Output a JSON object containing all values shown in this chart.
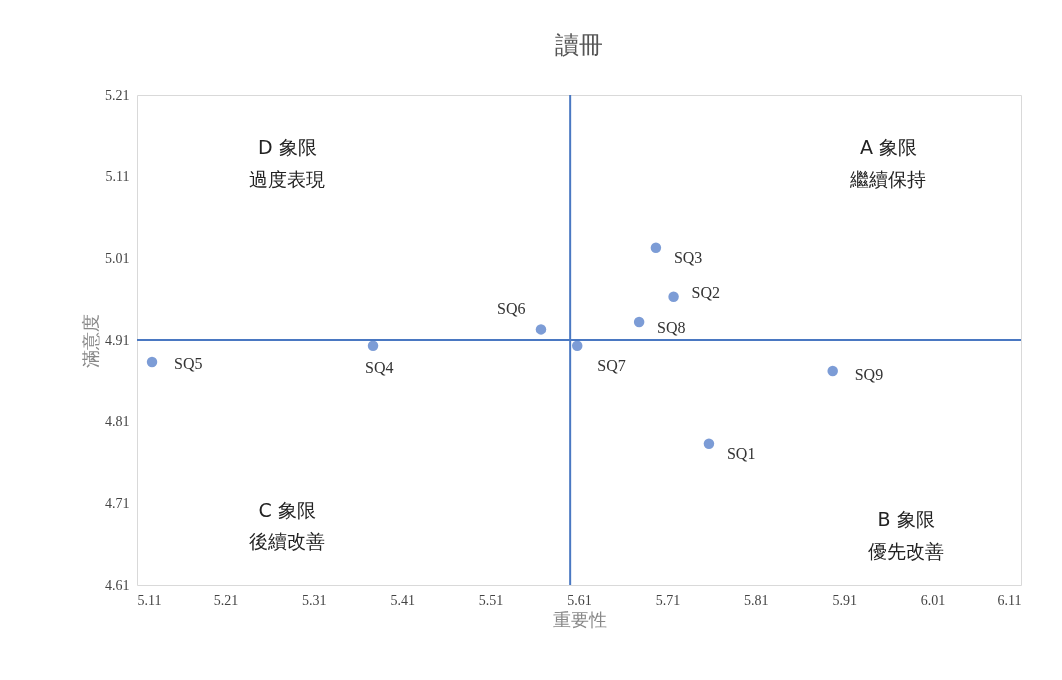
{
  "chart_data": {
    "type": "scatter",
    "title": "讀冊",
    "xlabel": "重要性",
    "ylabel": "滿意度",
    "xlim": [
      5.11,
      6.11
    ],
    "xticks": [
      5.11,
      5.21,
      5.31,
      5.41,
      5.51,
      5.61,
      5.71,
      5.81,
      5.91,
      6.01,
      6.11
    ],
    "ylim": [
      4.61,
      5.21
    ],
    "yticks": [
      4.61,
      4.71,
      4.81,
      4.91,
      5.01,
      5.11,
      5.21
    ],
    "grid": false,
    "marker": "circle",
    "series": [
      {
        "name": "SQ1",
        "color": "#4472c4",
        "x": [
          5.757
        ],
        "values": [
          4.783
        ]
      },
      {
        "name": "SQ2",
        "color": "#4472c4",
        "x": [
          5.717
        ],
        "values": [
          4.963
        ]
      },
      {
        "name": "SQ3",
        "color": "#4472c4",
        "x": [
          5.697
        ],
        "values": [
          5.023
        ]
      },
      {
        "name": "SQ4",
        "color": "#4472c4",
        "x": [
          5.377
        ],
        "values": [
          4.903
        ]
      },
      {
        "name": "SQ5",
        "color": "#4472c4",
        "x": [
          5.127
        ],
        "values": [
          4.883
        ]
      },
      {
        "name": "SQ6",
        "color": "#4472c4",
        "x": [
          5.567
        ],
        "values": [
          4.923
        ]
      },
      {
        "name": "SQ7",
        "color": "#4472c4",
        "x": [
          5.608
        ],
        "values": [
          4.903
        ]
      },
      {
        "name": "SQ8",
        "color": "#4472c4",
        "x": [
          5.678
        ],
        "values": [
          4.932
        ]
      },
      {
        "name": "SQ9",
        "color": "#4472c4",
        "x": [
          5.897
        ],
        "values": [
          4.872
        ]
      }
    ],
    "ref_lines": [
      {
        "axis": "x",
        "value": 5.6,
        "color": "#4a78c2"
      },
      {
        "axis": "y",
        "value": 4.91,
        "color": "#4a78c2"
      }
    ],
    "annotations": [
      "D 象限",
      "過度表現",
      "A 象限",
      "繼續保持",
      "C 象限",
      "後續改善",
      "B 象限",
      "優先改善"
    ]
  }
}
